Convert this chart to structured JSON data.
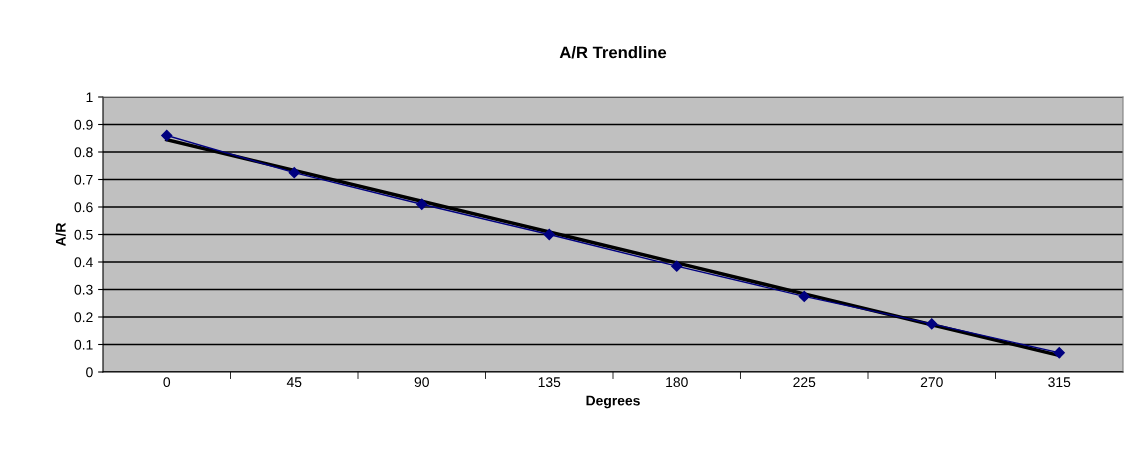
{
  "chart_data": {
    "type": "line",
    "title": "A/R Trendline",
    "xlabel": "Degrees",
    "ylabel": "A/R",
    "categories": [
      "0",
      "45",
      "90",
      "135",
      "180",
      "225",
      "270",
      "315"
    ],
    "series": [
      {
        "color": "#000080",
        "values": [
          0.86,
          0.725,
          0.61,
          0.5,
          0.385,
          0.275,
          0.175,
          0.07
        ],
        "marker": "diamond"
      },
      {
        "color": "#000000",
        "values": [
          0.845,
          0.733,
          0.621,
          0.509,
          0.397,
          0.284,
          0.172,
          0.06
        ],
        "marker": "none"
      }
    ],
    "ylim": [
      0,
      1
    ],
    "yticks": [
      0,
      0.1,
      0.2,
      0.3,
      0.4,
      0.5,
      0.6,
      0.7,
      0.8,
      0.9,
      1
    ],
    "grid": "y",
    "legend": false
  }
}
